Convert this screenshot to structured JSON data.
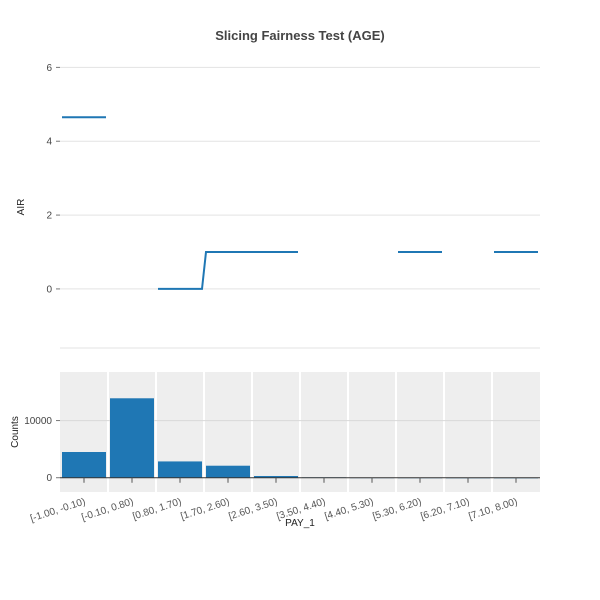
{
  "chart_data": [
    {
      "type": "line",
      "title": "Slicing Fairness Test (AGE)",
      "xlabel": "",
      "ylabel": "AIR",
      "ylim": [
        -1.6,
        6.2
      ],
      "yticks": [
        0,
        2,
        4,
        6
      ],
      "grid": true,
      "categories": [
        "[-1.00, -0.10)",
        "[-0.10, 0.80)",
        "[0.80, 1.70)",
        "[1.70, 2.60)",
        "[2.60, 3.50)",
        "[3.50, 4.40)",
        "[4.40, 5.30)",
        "[5.30, 6.20)",
        "[6.20, 7.10)",
        "[7.10, 8.00)"
      ],
      "series": [
        {
          "values": [
            4.65,
            null,
            0.0,
            1.0,
            1.0,
            null,
            null,
            1.0,
            null,
            1.0
          ]
        }
      ],
      "line_color": "#1f77b4"
    },
    {
      "type": "bar",
      "xlabel": "PAY_1",
      "ylabel": "Counts",
      "ylim": [
        -2500,
        18500
      ],
      "yticks": [
        0,
        10000
      ],
      "categories": [
        "[-1.00, -0.10)",
        "[-0.10, 0.80)",
        "[0.80, 1.70)",
        "[1.70, 2.60)",
        "[2.60, 3.50)",
        "[3.50, 4.40)",
        "[4.40, 5.30)",
        "[5.30, 6.20)",
        "[6.20, 7.10)",
        "[7.10, 8.00)"
      ],
      "values": [
        4500,
        13900,
        2850,
        2100,
        300,
        60,
        30,
        20,
        10,
        5
      ],
      "bar_color": "#1f77b4",
      "background": "#eeeeee"
    }
  ]
}
